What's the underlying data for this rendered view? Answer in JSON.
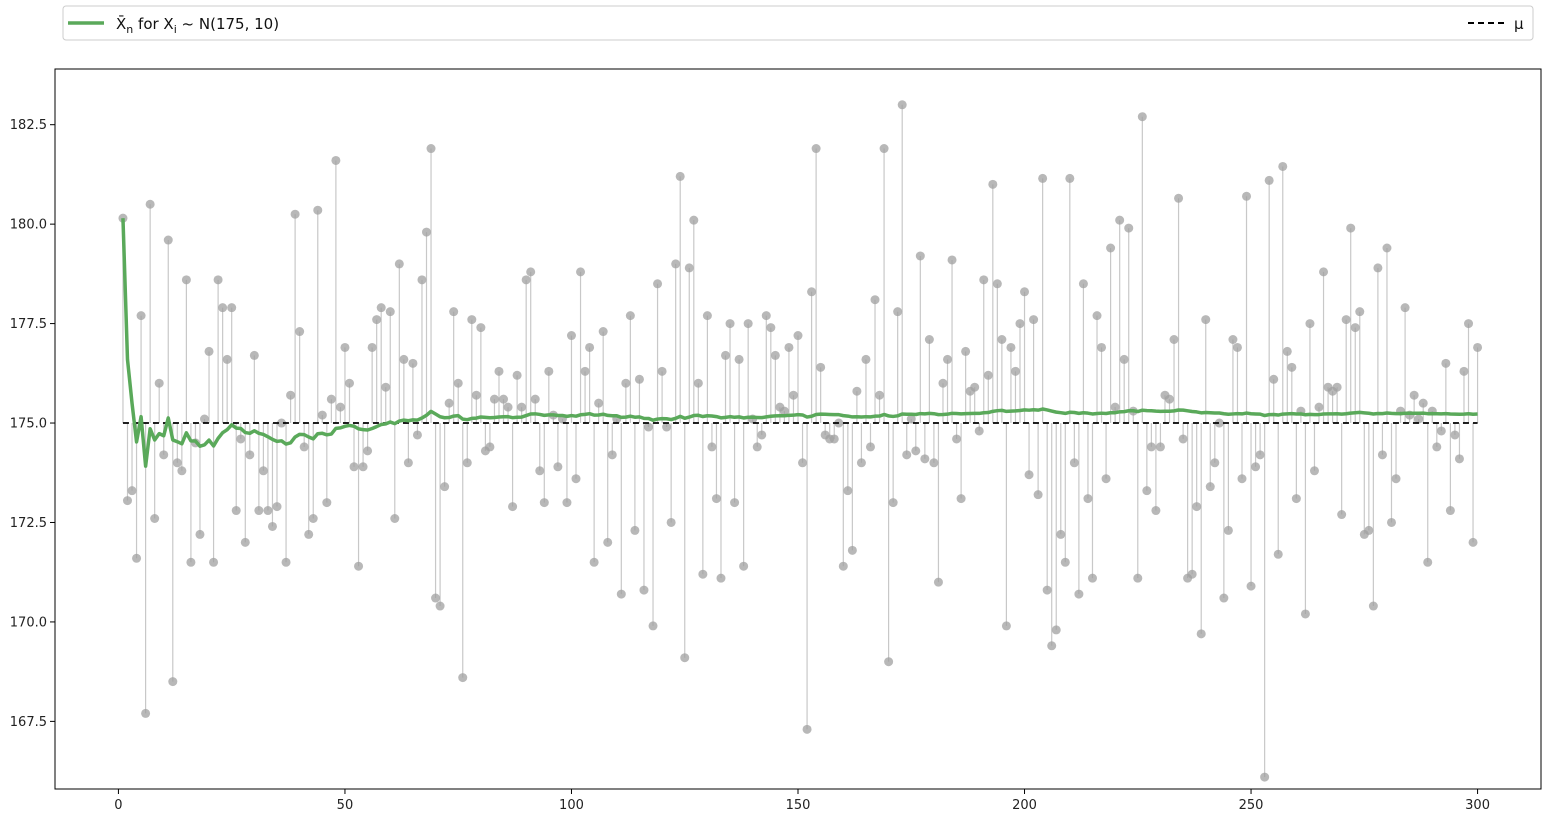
{
  "chart_data": {
    "type": "line",
    "title": "",
    "xlabel": "",
    "ylabel": "",
    "xlim": [
      -14,
      314
    ],
    "ylim": [
      165.8,
      183.9
    ],
    "grid": false,
    "legend_placement": "top, spanning width above plot",
    "x_ticks": [
      0,
      50,
      100,
      150,
      200,
      250,
      300
    ],
    "x_tick_labels": [
      "0",
      "50",
      "100",
      "150",
      "200",
      "250",
      "300"
    ],
    "y_ticks": [
      167.5,
      170.0,
      172.5,
      175.0,
      177.5,
      180.0,
      182.5
    ],
    "y_tick_labels": [
      "167.5",
      "170.0",
      "172.5",
      "175.0",
      "177.5",
      "180.0",
      "182.5"
    ],
    "mu": 175,
    "legend": {
      "running_mean_label_prefix": "X̄",
      "running_mean_label_sub": "n",
      "running_mean_label_mid": " for X",
      "running_mean_label_sub2": "i",
      "running_mean_label_suffix": " ~ N(175, 10)",
      "mu_label": "μ"
    },
    "colors": {
      "running_mean": "#5aa95a",
      "samples": "#a0a0a0",
      "stems": "#c8c8c8",
      "mu_line": "#000000"
    },
    "samples": [
      180.15,
      173.05,
      173.3,
      171.6,
      177.7,
      167.7,
      180.5,
      172.6,
      176.0,
      174.2,
      179.6,
      168.5,
      174.0,
      173.8,
      178.6,
      171.5,
      174.5,
      172.2,
      175.1,
      176.8,
      171.5,
      178.6,
      177.9,
      176.6,
      177.9,
      172.8,
      174.6,
      172.0,
      174.2,
      176.7,
      172.8,
      173.8,
      172.8,
      172.4,
      172.9,
      175.0,
      171.5,
      175.7,
      180.25,
      177.3,
      174.4,
      172.2,
      172.6,
      180.35,
      175.2,
      173.0,
      175.6,
      181.6,
      175.4,
      176.9,
      176.0,
      173.9,
      171.4,
      173.9,
      174.3,
      176.9,
      177.6,
      177.9,
      175.9,
      177.8,
      172.6,
      179.0,
      176.6,
      174.0,
      176.5,
      174.7,
      178.6,
      179.8,
      181.9,
      170.6,
      170.4,
      173.4,
      175.5,
      177.8,
      176.0,
      168.6,
      174.0,
      177.6,
      175.7,
      177.4,
      174.3,
      174.4,
      175.6,
      176.3,
      175.6,
      175.4,
      172.9,
      176.2,
      175.4,
      178.6,
      178.8,
      175.6,
      173.8,
      173.0,
      176.3,
      175.2,
      173.9,
      175.1,
      173.0,
      177.2,
      173.6,
      178.8,
      176.3,
      176.9,
      171.5,
      175.5,
      177.3,
      172.0,
      174.2,
      175.1,
      170.7,
      176.0,
      177.7,
      172.3,
      176.1,
      170.8,
      174.9,
      169.9,
      178.5,
      176.3,
      174.9,
      172.5,
      179.0,
      181.2,
      169.1,
      178.9,
      180.1,
      176.0,
      171.2,
      177.7,
      174.4,
      173.1,
      171.1,
      176.7,
      177.5,
      173.0,
      176.6,
      171.4,
      177.5,
      175.1,
      174.4,
      174.7,
      177.7,
      177.4,
      176.7,
      175.4,
      175.3,
      176.9,
      175.7,
      177.2,
      174.0,
      167.3,
      178.3,
      181.9,
      176.4,
      174.7,
      174.6,
      174.6,
      175.0,
      171.4,
      173.3,
      171.8,
      175.8,
      174.0,
      176.6,
      174.4,
      178.1,
      175.7,
      181.9,
      169.0,
      173.0,
      177.8,
      183.0,
      174.2,
      175.1,
      174.3,
      179.2,
      174.1,
      177.1,
      174.0,
      171.0,
      176.0,
      176.6,
      179.1,
      174.6,
      173.1,
      176.8,
      175.8,
      175.9,
      174.8,
      178.6,
      176.2,
      181.0,
      178.5,
      177.1,
      169.9,
      176.9,
      176.3,
      177.5,
      178.3,
      173.7,
      177.6,
      173.2,
      181.15,
      170.8,
      169.4,
      169.8,
      172.2,
      171.5,
      181.15,
      174.0,
      170.7,
      178.5,
      173.1,
      171.1,
      177.7,
      176.9,
      173.6,
      179.4,
      175.4,
      180.1,
      176.6,
      179.9,
      175.3,
      171.1,
      182.7,
      173.3,
      174.4,
      172.8,
      174.4,
      175.7,
      175.6,
      177.1,
      180.65,
      174.6,
      171.1,
      171.2,
      172.9,
      169.7,
      177.6,
      173.4,
      174.0,
      175.0,
      170.6,
      172.3,
      177.1,
      176.9,
      173.6,
      180.7,
      170.9,
      173.9,
      174.2,
      166.1,
      181.1,
      176.1,
      171.7,
      181.45,
      176.8,
      176.4,
      173.1,
      175.3,
      170.2,
      177.5,
      173.8,
      175.4,
      178.8,
      175.9,
      175.8,
      175.9,
      172.7,
      177.6,
      179.9,
      177.4,
      177.8,
      172.2,
      172.3,
      170.4,
      178.9,
      174.2,
      179.4,
      172.5,
      173.6,
      175.3,
      177.9,
      175.2,
      175.7,
      175.1,
      175.5,
      171.5,
      175.3,
      174.4,
      174.8,
      176.5,
      172.8,
      174.7,
      174.1,
      176.3,
      177.5,
      172.0,
      176.9
    ]
  }
}
